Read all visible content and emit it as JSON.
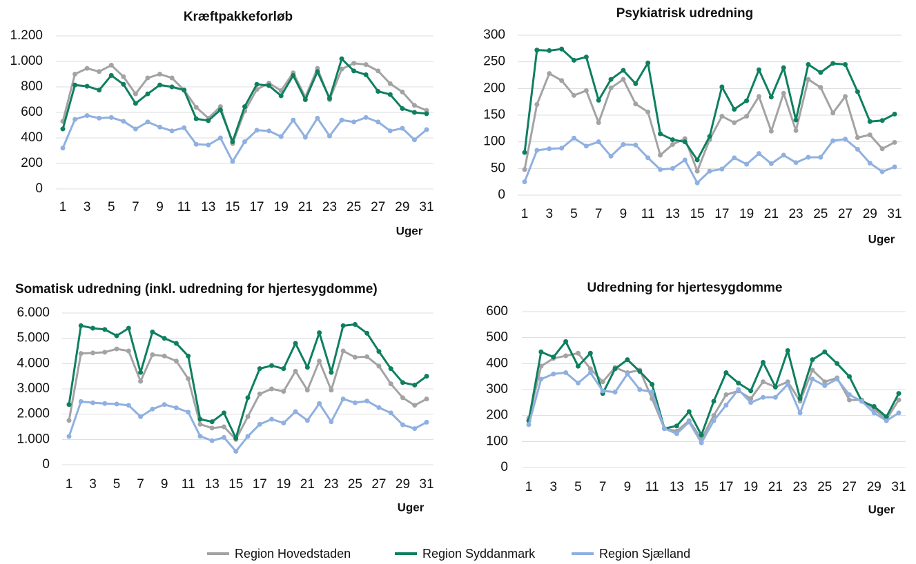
{
  "chart_data": [
    {
      "type": "line",
      "title": "Kræftpakkeforløb",
      "xlabel": "Uger",
      "categories": [
        1,
        null,
        3,
        null,
        5,
        null,
        7,
        null,
        9,
        null,
        11,
        null,
        13,
        null,
        15,
        null,
        17,
        null,
        19,
        null,
        21,
        null,
        23,
        null,
        25,
        null,
        27,
        null,
        29,
        null,
        31
      ],
      "ylim": [
        0,
        1200
      ],
      "yticks": [
        0,
        200,
        400,
        600,
        800,
        {
          "value": 1000,
          "label": "1.000"
        },
        {
          "value": 1200,
          "label": "1.200"
        }
      ],
      "grid": true,
      "series": [
        {
          "name": "Region Hovedstaden",
          "color": "#a3a3a3",
          "values": [
            530,
            900,
            945,
            920,
            970,
            880,
            745,
            870,
            900,
            870,
            775,
            640,
            555,
            645,
            355,
            610,
            780,
            830,
            770,
            910,
            720,
            945,
            700,
            940,
            985,
            975,
            925,
            825,
            760,
            655,
            615
          ]
        },
        {
          "name": "Region Syddanmark",
          "color": "#0e7f5f",
          "values": [
            470,
            815,
            805,
            775,
            890,
            820,
            670,
            745,
            815,
            800,
            775,
            550,
            535,
            620,
            370,
            645,
            820,
            810,
            730,
            890,
            700,
            920,
            710,
            1020,
            925,
            895,
            765,
            740,
            630,
            600,
            590
          ]
        },
        {
          "name": "Region Sjælland",
          "color": "#8fb0e0",
          "values": [
            320,
            545,
            575,
            555,
            560,
            530,
            470,
            525,
            485,
            455,
            480,
            350,
            345,
            400,
            215,
            370,
            460,
            455,
            410,
            540,
            405,
            555,
            415,
            540,
            525,
            560,
            525,
            455,
            475,
            385,
            465
          ]
        }
      ]
    },
    {
      "type": "line",
      "title": "Psykiatrisk udredning",
      "xlabel": "Uger",
      "categories": [
        1,
        null,
        3,
        null,
        5,
        null,
        7,
        null,
        9,
        null,
        11,
        null,
        13,
        null,
        15,
        null,
        17,
        null,
        19,
        null,
        21,
        null,
        23,
        null,
        25,
        null,
        27,
        null,
        29,
        null,
        31
      ],
      "ylim": [
        0,
        300
      ],
      "yticks": [
        0,
        50,
        100,
        150,
        200,
        250,
        300
      ],
      "grid": true,
      "series": [
        {
          "name": "Region Hovedstaden",
          "color": "#a3a3a3",
          "values": [
            48,
            170,
            228,
            215,
            187,
            196,
            136,
            201,
            217,
            171,
            156,
            75,
            95,
            106,
            45,
            104,
            148,
            136,
            148,
            185,
            120,
            191,
            121,
            217,
            202,
            154,
            185,
            108,
            113,
            87,
            99
          ]
        },
        {
          "name": "Region Syddanmark",
          "color": "#0e7f5f",
          "values": [
            80,
            272,
            271,
            274,
            253,
            259,
            178,
            217,
            234,
            209,
            248,
            115,
            104,
            100,
            66,
            110,
            203,
            161,
            177,
            235,
            184,
            239,
            141,
            245,
            230,
            247,
            245,
            194,
            138,
            140,
            152
          ]
        },
        {
          "name": "Region Sjælland",
          "color": "#8fb0e0",
          "values": [
            25,
            84,
            87,
            88,
            107,
            92,
            100,
            73,
            95,
            94,
            70,
            48,
            50,
            66,
            23,
            45,
            49,
            70,
            58,
            78,
            59,
            75,
            61,
            71,
            71,
            102,
            105,
            86,
            60,
            44,
            53
          ]
        }
      ]
    },
    {
      "type": "line",
      "title": "Somatisk udredning (inkl. udredning for hjertesygdomme)",
      "xlabel": "Uger",
      "categories": [
        1,
        null,
        3,
        null,
        5,
        null,
        7,
        null,
        9,
        null,
        11,
        null,
        13,
        null,
        15,
        null,
        17,
        null,
        19,
        null,
        21,
        null,
        23,
        null,
        25,
        null,
        27,
        null,
        29,
        null,
        31
      ],
      "ylim": [
        0,
        6000
      ],
      "yticks": [
        0,
        {
          "value": 1000,
          "label": "1.000"
        },
        {
          "value": 2000,
          "label": "2.000"
        },
        {
          "value": 3000,
          "label": "3.000"
        },
        {
          "value": 4000,
          "label": "4.000"
        },
        {
          "value": 5000,
          "label": "5.000"
        },
        {
          "value": 6000,
          "label": "6.000"
        }
      ],
      "grid": true,
      "series": [
        {
          "name": "Region Hovedstaden",
          "color": "#a3a3a3",
          "values": [
            1750,
            4400,
            4420,
            4450,
            4580,
            4500,
            3300,
            4350,
            4300,
            4100,
            3400,
            1600,
            1450,
            1500,
            1000,
            1900,
            2800,
            3000,
            2900,
            3700,
            2950,
            4100,
            2950,
            4500,
            4250,
            4270,
            3900,
            3200,
            2650,
            2350,
            2600
          ]
        },
        {
          "name": "Region Syddanmark",
          "color": "#0e7f5f",
          "values": [
            2380,
            5500,
            5400,
            5350,
            5100,
            5400,
            3650,
            5250,
            5000,
            4800,
            4300,
            1800,
            1700,
            2050,
            1050,
            2650,
            3800,
            3920,
            3800,
            4800,
            3850,
            5220,
            3650,
            5500,
            5550,
            5200,
            4480,
            3800,
            3250,
            3150,
            3500
          ]
        },
        {
          "name": "Region Sjælland",
          "color": "#8fb0e0",
          "values": [
            1120,
            2500,
            2450,
            2420,
            2400,
            2350,
            1900,
            2200,
            2380,
            2250,
            2080,
            1130,
            950,
            1080,
            530,
            1120,
            1600,
            1800,
            1650,
            2100,
            1750,
            2420,
            1700,
            2600,
            2450,
            2520,
            2260,
            2050,
            1580,
            1430,
            1680
          ]
        }
      ]
    },
    {
      "type": "line",
      "title": "Udredning for hjertesygdomme",
      "xlabel": "Uger",
      "categories": [
        1,
        null,
        3,
        null,
        5,
        null,
        7,
        null,
        9,
        null,
        11,
        null,
        13,
        null,
        15,
        null,
        17,
        null,
        19,
        null,
        21,
        null,
        23,
        null,
        25,
        null,
        27,
        null,
        29,
        null,
        31
      ],
      "ylim": [
        0,
        600
      ],
      "yticks": [
        0,
        100,
        200,
        300,
        400,
        500,
        600
      ],
      "grid": true,
      "series": [
        {
          "name": "Region Hovedstaden",
          "color": "#a3a3a3",
          "values": [
            190,
            390,
            420,
            430,
            440,
            380,
            330,
            385,
            365,
            375,
            265,
            150,
            140,
            180,
            110,
            200,
            280,
            295,
            265,
            330,
            310,
            330,
            255,
            375,
            330,
            345,
            260,
            260,
            225,
            185,
            260
          ]
        },
        {
          "name": "Region Syddanmark",
          "color": "#0e7f5f",
          "values": [
            180,
            445,
            425,
            485,
            390,
            440,
            285,
            380,
            415,
            370,
            320,
            150,
            160,
            215,
            125,
            255,
            365,
            325,
            295,
            405,
            310,
            450,
            265,
            415,
            445,
            400,
            350,
            255,
            235,
            195,
            285
          ]
        },
        {
          "name": "Region Sjælland",
          "color": "#8fb0e0",
          "values": [
            165,
            340,
            360,
            365,
            325,
            365,
            295,
            290,
            360,
            300,
            290,
            150,
            130,
            175,
            95,
            180,
            240,
            300,
            250,
            270,
            270,
            320,
            210,
            340,
            315,
            340,
            280,
            255,
            210,
            180,
            210
          ]
        }
      ]
    }
  ]
}
